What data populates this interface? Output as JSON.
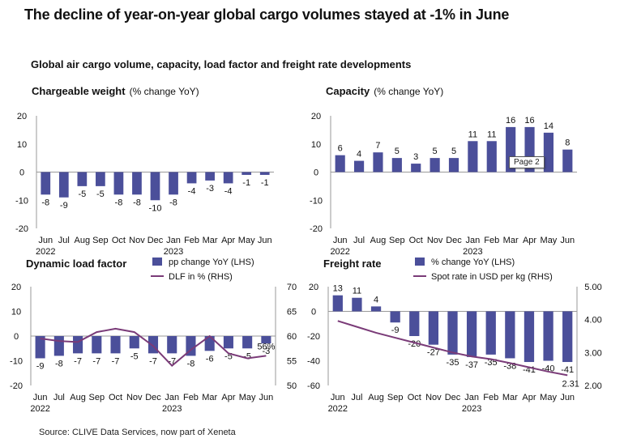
{
  "title": "The decline of year-on-year global cargo volumes stayed at -1% in June",
  "subtitle": "Global air cargo volume, capacity, load factor and freight rate developments",
  "source": "Source: CLIVE Data Services, now part of Xeneta",
  "tooltip": "Page 2",
  "colors": {
    "bar": "#4b4f9a",
    "line": "#7a3b78",
    "axis": "#999999"
  },
  "chart_data": [
    {
      "type": "bar",
      "title": "Chargeable weight",
      "unit": "(% change YoY)",
      "categories": [
        "Jun",
        "Jul",
        "Aug",
        "Sep",
        "Oct",
        "Nov",
        "Dec",
        "Jan",
        "Feb",
        "Mar",
        "Apr",
        "May",
        "Jun"
      ],
      "year_labels": [
        "2022",
        "2023"
      ],
      "values": [
        -8,
        -9,
        -5,
        -5,
        -8,
        -8,
        -10,
        -8,
        -4,
        -3,
        -4,
        -1,
        -1
      ],
      "ylim": [
        -20,
        20
      ],
      "yticks": [
        20,
        10,
        0,
        -10,
        -20
      ]
    },
    {
      "type": "bar",
      "title": "Capacity",
      "unit": "(% change YoY)",
      "categories": [
        "Jun",
        "Jul",
        "Aug",
        "Sep",
        "Oct",
        "Nov",
        "Dec",
        "Jan",
        "Feb",
        "Mar",
        "Apr",
        "May",
        "Jun"
      ],
      "year_labels": [
        "2022",
        "2023"
      ],
      "values": [
        6,
        4,
        7,
        5,
        3,
        5,
        5,
        11,
        11,
        16,
        16,
        14,
        8
      ],
      "ylim": [
        -20,
        20
      ],
      "yticks": [
        20,
        10,
        0,
        -10,
        -20
      ]
    },
    {
      "type": "bar+line",
      "title": "Dynamic load factor",
      "categories": [
        "Jun",
        "Jul",
        "Aug",
        "Sep",
        "Oct",
        "Nov",
        "Dec",
        "Jan",
        "Feb",
        "Mar",
        "Apr",
        "May",
        "Jun"
      ],
      "year_labels": [
        "2022",
        "2023"
      ],
      "series": [
        {
          "name": "pp change YoY (LHS)",
          "type": "bar",
          "axis": "left",
          "values": [
            -9,
            -8,
            -7,
            -7,
            -7,
            -5,
            -7,
            -7,
            -8,
            -6,
            -5,
            -5,
            -3
          ]
        },
        {
          "name": "DLF in % (RHS)",
          "type": "line",
          "axis": "right",
          "values": [
            59.5,
            59,
            58.8,
            60.8,
            61.5,
            60.8,
            58,
            54,
            57.2,
            60,
            56.5,
            55.5,
            56
          ]
        }
      ],
      "annotation": "56%",
      "ylim": [
        -20,
        20
      ],
      "yticks": [
        20,
        10,
        0,
        -10,
        -20
      ],
      "ylim_right": [
        50,
        70
      ],
      "yticks_right": [
        70,
        65,
        60,
        55,
        50
      ]
    },
    {
      "type": "bar+line",
      "title": "Freight rate",
      "categories": [
        "Jun",
        "Jul",
        "Aug",
        "Sep",
        "Oct",
        "Nov",
        "Dec",
        "Jan",
        "Feb",
        "Mar",
        "Apr",
        "May",
        "Jun"
      ],
      "year_labels": [
        "2022",
        "2023"
      ],
      "series": [
        {
          "name": "% change YoY (LHS)",
          "type": "bar",
          "axis": "left",
          "values": [
            13,
            11,
            4,
            -9,
            -20,
            -27,
            -35,
            -37,
            -35,
            -38,
            -41,
            -40,
            -41
          ]
        },
        {
          "name": "Spot rate in USD per kg (RHS)",
          "type": "line",
          "axis": "right",
          "values": [
            3.96,
            3.78,
            3.6,
            3.45,
            3.3,
            3.15,
            3.0,
            2.88,
            2.8,
            2.68,
            2.55,
            2.42,
            2.31
          ]
        }
      ],
      "annotation": "2.31",
      "ylim": [
        -60,
        20
      ],
      "yticks": [
        20,
        0,
        -20,
        -40,
        -60
      ],
      "ylim_right": [
        2.0,
        5.0
      ],
      "yticks_right": [
        "5.00",
        "4.00",
        "3.00",
        "2.00"
      ]
    }
  ]
}
